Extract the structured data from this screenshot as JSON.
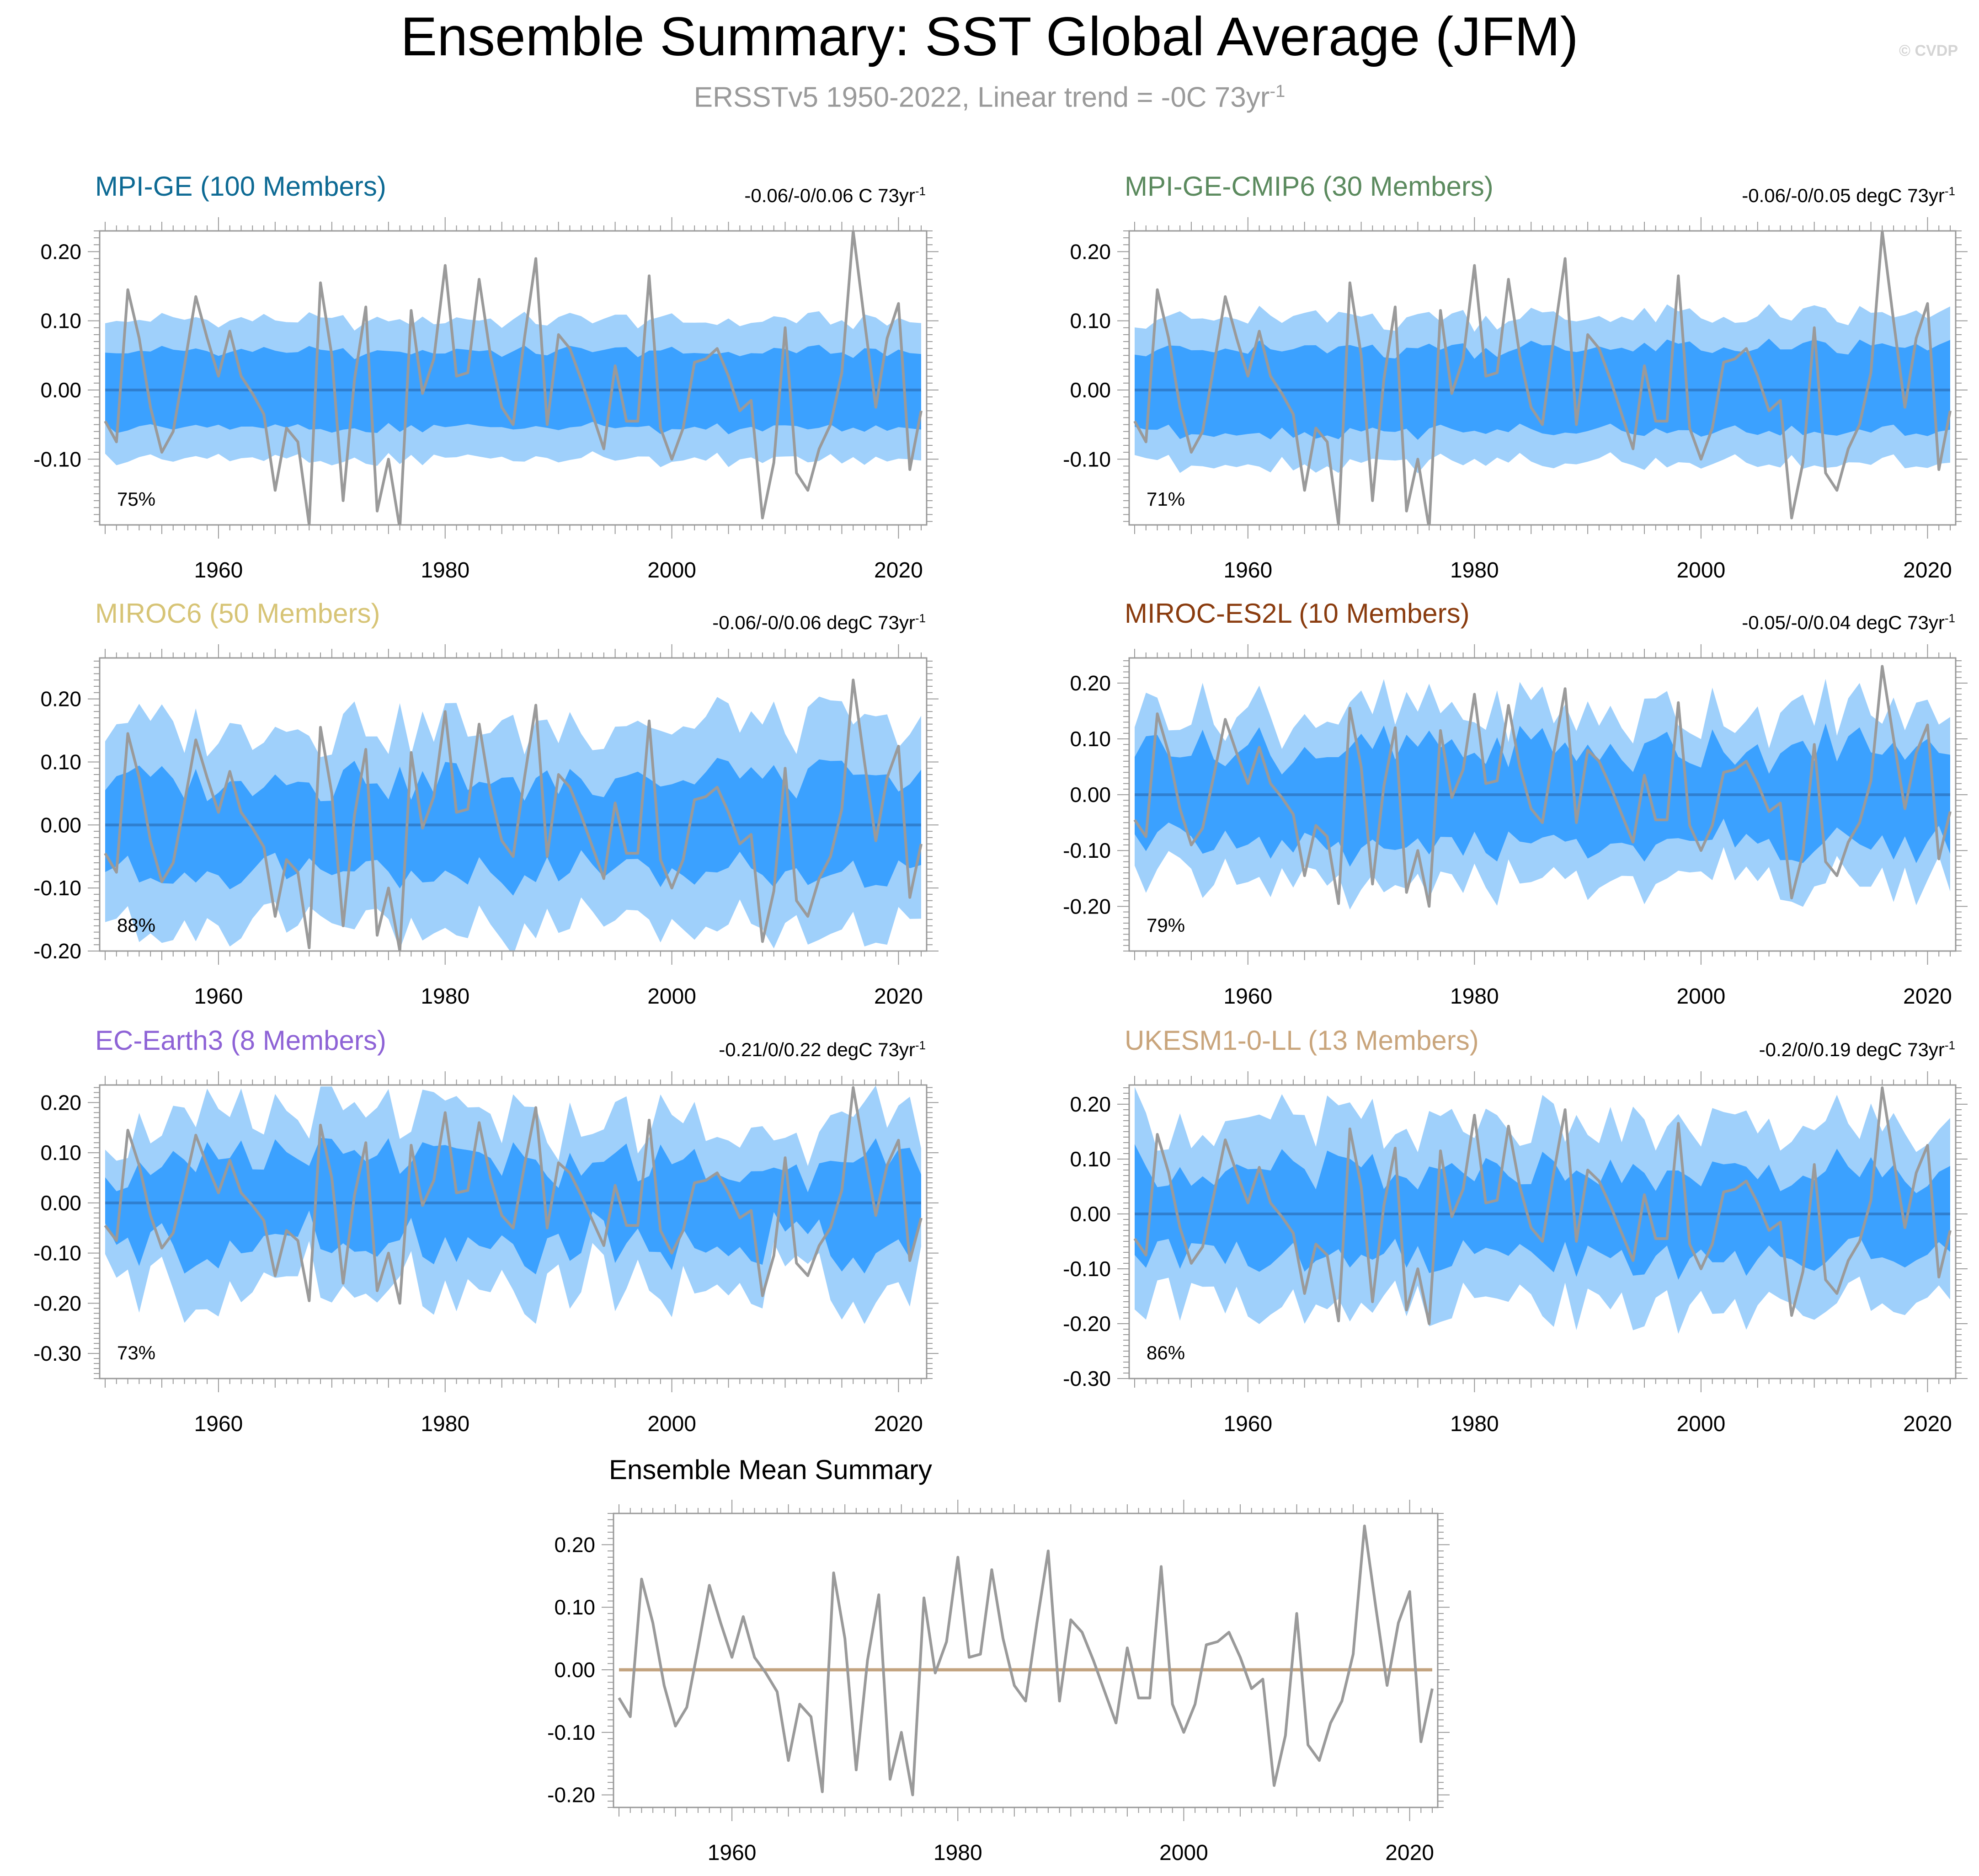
{
  "page": {
    "title": "Ensemble Summary: SST Global Average (JFM)",
    "subtitle_main": "ERSSTv5 1950-2022, Linear trend = -0C 73yr",
    "subtitle_sup": "-1",
    "copyright": "© CVDP"
  },
  "colors": {
    "outer_band": "#9fd0fb",
    "inner_band": "#3ba1ff",
    "ensemble_mean_line": "#2f7fd0",
    "observations_line": "#9a9a9a",
    "mean_summary_zero_line": "#c2a27e",
    "axis": "#999999"
  },
  "chart_data": [
    {
      "type": "line",
      "panel": "mpi-ge",
      "title": "MPI-GE (100 Members)",
      "title_color": "#0d6a94",
      "trend_range": "-0.06/-0/0.06 C 73yr",
      "trend_sup": "-1",
      "percent": "75%",
      "x_range": [
        1950,
        2022
      ],
      "ylim": [
        -0.195,
        0.23
      ],
      "yticks": [
        0.2,
        0.1,
        0.0,
        -0.1
      ],
      "ytick_labels": [
        "0.20",
        "0.10",
        "0.00",
        "-0.10"
      ],
      "xticks": [
        1960,
        1980,
        2000,
        2020
      ],
      "band_outer_half_width": 0.1,
      "band_inner_half_width": 0.055,
      "band_variability": 0.01
    },
    {
      "type": "line",
      "panel": "mpi-ge-cmip6",
      "title": "MPI-GE-CMIP6 (30 Members)",
      "title_color": "#5b8a5e",
      "trend_range": "-0.06/-0/0.05 degC 73yr",
      "trend_sup": "-1",
      "percent": "71%",
      "x_range": [
        1950,
        2022
      ],
      "ylim": [
        -0.195,
        0.23
      ],
      "yticks": [
        0.2,
        0.1,
        0.0,
        -0.1
      ],
      "ytick_labels": [
        "0.20",
        "0.10",
        "0.00",
        "-0.10"
      ],
      "xticks": [
        1960,
        1980,
        2000,
        2020
      ],
      "band_outer_half_width": 0.105,
      "band_inner_half_width": 0.06,
      "band_variability": 0.015
    },
    {
      "type": "line",
      "panel": "miroc6",
      "title": "MIROC6 (50 Members)",
      "title_color": "#d7c476",
      "trend_range": "-0.06/-0/0.06 degC 73yr",
      "trend_sup": "-1",
      "percent": "88%",
      "x_range": [
        1950,
        2022
      ],
      "ylim": [
        -0.2,
        0.265
      ],
      "yticks": [
        0.2,
        0.1,
        0.0,
        -0.1,
        -0.2
      ],
      "ytick_labels": [
        "0.20",
        "0.10",
        "0.00",
        "-0.10",
        "-0.20"
      ],
      "xticks": [
        1960,
        1980,
        2000,
        2020
      ],
      "band_outer_half_width": 0.16,
      "band_inner_half_width": 0.075,
      "band_variability": 0.04
    },
    {
      "type": "line",
      "panel": "miroc-es2l",
      "title": "MIROC-ES2L (10 Members)",
      "title_color": "#8a3c0f",
      "trend_range": "-0.05/-0/0.04 degC 73yr",
      "trend_sup": "-1",
      "percent": "79%",
      "x_range": [
        1950,
        2022
      ],
      "ylim": [
        -0.28,
        0.245
      ],
      "yticks": [
        0.2,
        0.1,
        0.0,
        -0.1,
        -0.2
      ],
      "ytick_labels": [
        "0.20",
        "0.10",
        "0.00",
        "-0.10",
        "-0.20"
      ],
      "xticks": [
        1960,
        1980,
        2000,
        2020
      ],
      "band_outer_half_width": 0.15,
      "band_inner_half_width": 0.085,
      "band_variability": 0.05
    },
    {
      "type": "line",
      "panel": "ec-earth3",
      "title": "EC-Earth3 (8 Members)",
      "title_color": "#8e63d6",
      "trend_range": "-0.21/0/0.22 degC 73yr",
      "trend_sup": "-1",
      "percent": "73%",
      "x_range": [
        1950,
        2022
      ],
      "ylim": [
        -0.35,
        0.235
      ],
      "yticks": [
        0.2,
        0.1,
        0.0,
        -0.1,
        -0.2,
        -0.3
      ],
      "ytick_labels": [
        "0.20",
        "0.10",
        "0.00",
        "-0.10",
        "-0.20",
        "-0.30"
      ],
      "xticks": [
        1960,
        1980,
        2000,
        2020
      ],
      "band_outer_half_width": 0.16,
      "band_inner_half_width": 0.08,
      "band_variability": 0.07
    },
    {
      "type": "line",
      "panel": "ukesm1-0-ll",
      "title": "UKESM1-0-LL (13 Members)",
      "title_color": "#c9a57c",
      "trend_range": "-0.2/0/0.19 degC 73yr",
      "trend_sup": "-1",
      "percent": "86%",
      "x_range": [
        1950,
        2022
      ],
      "ylim": [
        -0.3,
        0.235
      ],
      "yticks": [
        0.2,
        0.1,
        0.0,
        -0.1,
        -0.2,
        -0.3
      ],
      "ytick_labels": [
        "0.20",
        "0.10",
        "0.00",
        "-0.10",
        "-0.20",
        "-0.30"
      ],
      "xticks": [
        1960,
        1980,
        2000,
        2020
      ],
      "band_outer_half_width": 0.16,
      "band_inner_half_width": 0.075,
      "band_variability": 0.05
    },
    {
      "type": "line",
      "panel": "ensemble-mean-summary",
      "title": "Ensemble Mean Summary",
      "title_color": "#000000",
      "x_range": [
        1950,
        2022
      ],
      "ylim": [
        -0.22,
        0.25
      ],
      "yticks": [
        0.2,
        0.1,
        0.0,
        -0.1,
        -0.2
      ],
      "ytick_labels": [
        "0.20",
        "0.10",
        "0.00",
        "-0.10",
        "-0.20"
      ],
      "xticks": [
        1960,
        1980,
        2000,
        2020
      ]
    }
  ],
  "observations": {
    "name": "ERSSTv5",
    "years": [
      1950,
      1951,
      1952,
      1953,
      1954,
      1955,
      1956,
      1957,
      1958,
      1959,
      1960,
      1961,
      1962,
      1963,
      1964,
      1965,
      1966,
      1967,
      1968,
      1969,
      1970,
      1971,
      1972,
      1973,
      1974,
      1975,
      1976,
      1977,
      1978,
      1979,
      1980,
      1981,
      1982,
      1983,
      1984,
      1985,
      1986,
      1987,
      1988,
      1989,
      1990,
      1991,
      1992,
      1993,
      1994,
      1995,
      1996,
      1997,
      1998,
      1999,
      2000,
      2001,
      2002,
      2003,
      2004,
      2005,
      2006,
      2007,
      2008,
      2009,
      2010,
      2011,
      2012,
      2013,
      2014,
      2015,
      2016,
      2017,
      2018,
      2019,
      2020,
      2021,
      2022
    ],
    "values": [
      -0.045,
      -0.075,
      0.145,
      0.075,
      -0.025,
      -0.09,
      -0.06,
      0.035,
      0.135,
      0.075,
      0.02,
      0.085,
      0.02,
      -0.005,
      -0.035,
      -0.145,
      -0.055,
      -0.075,
      -0.195,
      0.155,
      0.05,
      -0.16,
      0.015,
      0.12,
      -0.175,
      -0.1,
      -0.2,
      0.115,
      -0.005,
      0.045,
      0.18,
      0.02,
      0.025,
      0.16,
      0.05,
      -0.025,
      -0.05,
      0.075,
      0.19,
      -0.05,
      0.08,
      0.06,
      0.015,
      -0.035,
      -0.085,
      0.035,
      -0.045,
      -0.045,
      0.165,
      -0.055,
      -0.1,
      -0.055,
      0.04,
      0.045,
      0.06,
      0.02,
      -0.03,
      -0.015,
      -0.185,
      -0.105,
      0.09,
      -0.12,
      -0.145,
      -0.085,
      -0.05,
      0.025,
      0.23,
      0.1,
      -0.025,
      0.075,
      0.125,
      -0.115,
      -0.03
    ]
  }
}
